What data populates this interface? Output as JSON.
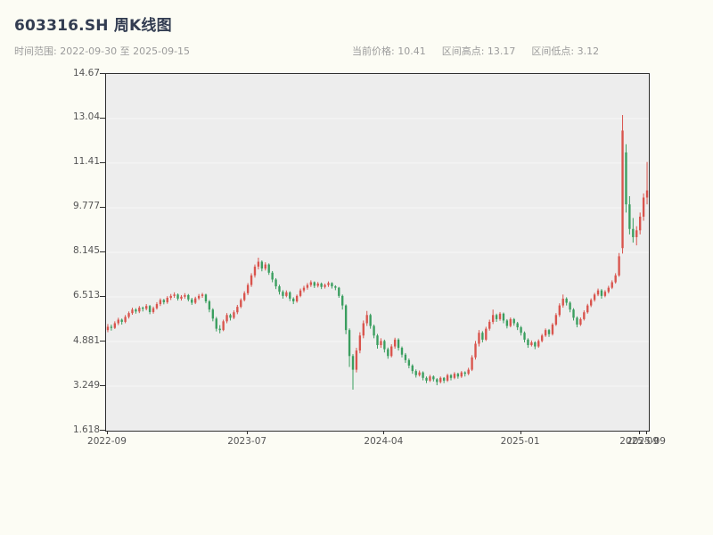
{
  "header": {
    "title": "603316.SH 周K线图",
    "time_range": "时间范围: 2022-09-30 至 2025-09-15",
    "stats": [
      "当前价格: 10.41",
      "区间高点: 13.17",
      "区间低点: 3.12"
    ]
  },
  "colors": {
    "up": "#d9544d",
    "down": "#3a9e5f",
    "plot_bg": "#ededed",
    "page_bg": "#fcfcf4",
    "axis": "#2e2e2e",
    "grid": "#f7f7f7",
    "tick_text": "#555555",
    "title_text": "#333d52",
    "subtitle_text": "#9b9b9b"
  },
  "chart_data": {
    "type": "candlestick",
    "symbol": "603316.SH",
    "title": "603316.SH 周K线图",
    "frequency": "weekly",
    "date_range": [
      "2022-09-30",
      "2025-09-15"
    ],
    "current_price": 10.41,
    "range_high": 13.17,
    "range_low": 3.12,
    "ylim": [
      1.618,
      14.67
    ],
    "y_ticks": [
      {
        "v": 1.618,
        "label": "1.618"
      },
      {
        "v": 3.249,
        "label": "3.249"
      },
      {
        "v": 4.881,
        "label": "4.881"
      },
      {
        "v": 6.513,
        "label": "6.513"
      },
      {
        "v": 8.145,
        "label": "8.145"
      },
      {
        "v": 9.777,
        "label": "9.777"
      },
      {
        "v": 11.41,
        "label": "11.41"
      },
      {
        "v": 13.04,
        "label": "13.04"
      },
      {
        "v": 14.67,
        "label": "14.67"
      }
    ],
    "x_ticks": [
      {
        "i": 0,
        "label": "2022-09"
      },
      {
        "i": 40,
        "label": "2023-07"
      },
      {
        "i": 79,
        "label": "2024-04"
      },
      {
        "i": 118,
        "label": "2025-01"
      },
      {
        "i": 152,
        "label": "2025-09"
      },
      {
        "i": 154,
        "label": "2025-09"
      }
    ],
    "ohlc_format": [
      "open",
      "high",
      "low",
      "close"
    ],
    "candles": [
      [
        5.3,
        5.52,
        5.22,
        5.42
      ],
      [
        5.42,
        5.5,
        5.28,
        5.38
      ],
      [
        5.38,
        5.62,
        5.34,
        5.55
      ],
      [
        5.55,
        5.75,
        5.48,
        5.68
      ],
      [
        5.68,
        5.72,
        5.5,
        5.6
      ],
      [
        5.6,
        5.85,
        5.55,
        5.78
      ],
      [
        5.78,
        5.98,
        5.72,
        5.92
      ],
      [
        5.92,
        6.12,
        5.86,
        6.05
      ],
      [
        6.05,
        6.1,
        5.9,
        5.98
      ],
      [
        5.98,
        6.18,
        5.92,
        6.12
      ],
      [
        6.12,
        6.16,
        5.98,
        6.08
      ],
      [
        6.08,
        6.25,
        6.02,
        6.18
      ],
      [
        6.18,
        6.22,
        5.88,
        5.96
      ],
      [
        5.96,
        6.16,
        5.9,
        6.1
      ],
      [
        6.1,
        6.32,
        6.05,
        6.25
      ],
      [
        6.25,
        6.46,
        6.18,
        6.4
      ],
      [
        6.4,
        6.44,
        6.24,
        6.32
      ],
      [
        6.32,
        6.54,
        6.26,
        6.48
      ],
      [
        6.48,
        6.62,
        6.4,
        6.55
      ],
      [
        6.55,
        6.68,
        6.48,
        6.6
      ],
      [
        6.6,
        6.64,
        6.38,
        6.45
      ],
      [
        6.45,
        6.58,
        6.38,
        6.52
      ],
      [
        6.52,
        6.65,
        6.45,
        6.58
      ],
      [
        6.58,
        6.62,
        6.35,
        6.42
      ],
      [
        6.42,
        6.48,
        6.22,
        6.3
      ],
      [
        6.3,
        6.52,
        6.25,
        6.46
      ],
      [
        6.46,
        6.62,
        6.4,
        6.55
      ],
      [
        6.55,
        6.66,
        6.48,
        6.6
      ],
      [
        6.6,
        6.63,
        6.28,
        6.35
      ],
      [
        6.35,
        6.4,
        5.95,
        6.05
      ],
      [
        6.05,
        6.1,
        5.62,
        5.72
      ],
      [
        5.72,
        5.78,
        5.25,
        5.35
      ],
      [
        5.35,
        5.48,
        5.18,
        5.3
      ],
      [
        5.3,
        5.68,
        5.26,
        5.62
      ],
      [
        5.62,
        5.92,
        5.55,
        5.85
      ],
      [
        5.85,
        5.9,
        5.65,
        5.75
      ],
      [
        5.75,
        6.02,
        5.7,
        5.95
      ],
      [
        5.95,
        6.22,
        5.88,
        6.15
      ],
      [
        6.15,
        6.46,
        6.1,
        6.4
      ],
      [
        6.4,
        6.72,
        6.35,
        6.65
      ],
      [
        6.65,
        7.02,
        6.58,
        6.95
      ],
      [
        6.95,
        7.38,
        6.88,
        7.3
      ],
      [
        7.3,
        7.7,
        7.22,
        7.62
      ],
      [
        7.62,
        7.95,
        7.52,
        7.8
      ],
      [
        7.8,
        7.85,
        7.45,
        7.55
      ],
      [
        7.55,
        7.78,
        7.48,
        7.7
      ],
      [
        7.7,
        7.74,
        7.32,
        7.4
      ],
      [
        7.4,
        7.46,
        7.05,
        7.15
      ],
      [
        7.15,
        7.2,
        6.8,
        6.9
      ],
      [
        6.9,
        6.96,
        6.6,
        6.7
      ],
      [
        6.7,
        6.76,
        6.45,
        6.55
      ],
      [
        6.55,
        6.75,
        6.5,
        6.68
      ],
      [
        6.68,
        6.72,
        6.36,
        6.45
      ],
      [
        6.45,
        6.5,
        6.25,
        6.35
      ],
      [
        6.35,
        6.6,
        6.3,
        6.55
      ],
      [
        6.55,
        6.82,
        6.5,
        6.75
      ],
      [
        6.75,
        6.92,
        6.68,
        6.85
      ],
      [
        6.85,
        7.02,
        6.78,
        6.95
      ],
      [
        6.95,
        7.12,
        6.88,
        7.05
      ],
      [
        7.05,
        7.08,
        6.84,
        6.92
      ],
      [
        6.92,
        7.06,
        6.86,
        7.0
      ],
      [
        7.0,
        7.04,
        6.8,
        6.88
      ],
      [
        6.88,
        7.0,
        6.82,
        6.95
      ],
      [
        6.95,
        7.08,
        6.88,
        7.02
      ],
      [
        7.02,
        7.05,
        6.82,
        6.9
      ],
      [
        6.9,
        6.94,
        6.76,
        6.85
      ],
      [
        6.85,
        6.88,
        6.48,
        6.55
      ],
      [
        6.55,
        6.6,
        6.05,
        6.2
      ],
      [
        6.2,
        6.24,
        5.15,
        5.3
      ],
      [
        5.3,
        5.36,
        3.95,
        4.35
      ],
      [
        4.35,
        4.42,
        3.12,
        3.85
      ],
      [
        3.85,
        4.65,
        3.75,
        4.55
      ],
      [
        4.55,
        5.22,
        4.45,
        5.1
      ],
      [
        5.1,
        5.65,
        5.0,
        5.55
      ],
      [
        5.55,
        6.0,
        5.45,
        5.85
      ],
      [
        5.85,
        5.9,
        5.35,
        5.45
      ],
      [
        5.45,
        5.5,
        5.0,
        5.1
      ],
      [
        5.1,
        5.16,
        4.62,
        4.75
      ],
      [
        4.75,
        5.0,
        4.65,
        4.9
      ],
      [
        4.9,
        4.95,
        4.48,
        4.6
      ],
      [
        4.6,
        4.66,
        4.25,
        4.35
      ],
      [
        4.35,
        4.78,
        4.3,
        4.7
      ],
      [
        4.7,
        5.02,
        4.62,
        4.95
      ],
      [
        4.95,
        5.0,
        4.55,
        4.65
      ],
      [
        4.65,
        4.7,
        4.3,
        4.4
      ],
      [
        4.4,
        4.46,
        4.1,
        4.2
      ],
      [
        4.2,
        4.26,
        3.9,
        4.0
      ],
      [
        4.0,
        4.05,
        3.7,
        3.8
      ],
      [
        3.8,
        3.86,
        3.56,
        3.65
      ],
      [
        3.65,
        3.82,
        3.6,
        3.75
      ],
      [
        3.75,
        3.79,
        3.46,
        3.55
      ],
      [
        3.55,
        3.6,
        3.36,
        3.45
      ],
      [
        3.45,
        3.66,
        3.4,
        3.6
      ],
      [
        3.6,
        3.64,
        3.42,
        3.5
      ],
      [
        3.5,
        3.54,
        3.28,
        3.4
      ],
      [
        3.4,
        3.6,
        3.35,
        3.55
      ],
      [
        3.55,
        3.58,
        3.36,
        3.45
      ],
      [
        3.45,
        3.7,
        3.4,
        3.65
      ],
      [
        3.65,
        3.69,
        3.46,
        3.55
      ],
      [
        3.55,
        3.76,
        3.5,
        3.7
      ],
      [
        3.7,
        3.74,
        3.52,
        3.6
      ],
      [
        3.6,
        3.8,
        3.55,
        3.75
      ],
      [
        3.75,
        3.79,
        3.6,
        3.7
      ],
      [
        3.7,
        3.92,
        3.65,
        3.85
      ],
      [
        3.85,
        4.38,
        3.8,
        4.3
      ],
      [
        4.3,
        4.9,
        4.22,
        4.8
      ],
      [
        4.8,
        5.3,
        4.7,
        5.2
      ],
      [
        5.2,
        5.26,
        4.85,
        4.95
      ],
      [
        4.95,
        5.42,
        4.9,
        5.35
      ],
      [
        5.35,
        5.68,
        5.28,
        5.6
      ],
      [
        5.6,
        6.05,
        5.52,
        5.85
      ],
      [
        5.85,
        5.9,
        5.6,
        5.7
      ],
      [
        5.7,
        5.96,
        5.64,
        5.9
      ],
      [
        5.9,
        5.94,
        5.55,
        5.65
      ],
      [
        5.65,
        5.7,
        5.36,
        5.45
      ],
      [
        5.45,
        5.76,
        5.4,
        5.7
      ],
      [
        5.7,
        5.74,
        5.46,
        5.55
      ],
      [
        5.55,
        5.6,
        5.3,
        5.4
      ],
      [
        5.4,
        5.45,
        5.1,
        5.2
      ],
      [
        5.2,
        5.25,
        4.85,
        4.95
      ],
      [
        4.95,
        5.0,
        4.65,
        4.75
      ],
      [
        4.75,
        4.92,
        4.7,
        4.85
      ],
      [
        4.85,
        4.89,
        4.6,
        4.7
      ],
      [
        4.7,
        4.96,
        4.65,
        4.9
      ],
      [
        4.9,
        5.16,
        4.85,
        5.1
      ],
      [
        5.1,
        5.36,
        5.05,
        5.3
      ],
      [
        5.3,
        5.34,
        5.05,
        5.15
      ],
      [
        5.15,
        5.56,
        5.1,
        5.5
      ],
      [
        5.5,
        5.92,
        5.45,
        5.85
      ],
      [
        5.85,
        6.28,
        5.78,
        6.2
      ],
      [
        6.2,
        6.6,
        6.12,
        6.45
      ],
      [
        6.45,
        6.5,
        6.2,
        6.3
      ],
      [
        6.3,
        6.35,
        5.95,
        6.05
      ],
      [
        6.05,
        6.1,
        5.65,
        5.75
      ],
      [
        5.75,
        5.8,
        5.4,
        5.5
      ],
      [
        5.5,
        5.76,
        5.45,
        5.7
      ],
      [
        5.7,
        6.02,
        5.65,
        5.95
      ],
      [
        5.95,
        6.26,
        5.9,
        6.2
      ],
      [
        6.2,
        6.46,
        6.14,
        6.4
      ],
      [
        6.4,
        6.66,
        6.34,
        6.6
      ],
      [
        6.6,
        6.82,
        6.54,
        6.75
      ],
      [
        6.75,
        6.8,
        6.45,
        6.55
      ],
      [
        6.55,
        6.76,
        6.5,
        6.7
      ],
      [
        6.7,
        6.92,
        6.64,
        6.85
      ],
      [
        6.85,
        7.12,
        6.8,
        7.05
      ],
      [
        7.05,
        7.38,
        7.0,
        7.3
      ],
      [
        7.3,
        8.12,
        7.25,
        8.0
      ],
      [
        8.3,
        13.17,
        8.1,
        12.6
      ],
      [
        11.8,
        12.1,
        9.6,
        9.9
      ],
      [
        9.9,
        10.2,
        8.8,
        9.0
      ],
      [
        9.0,
        9.4,
        8.5,
        8.7
      ],
      [
        8.7,
        9.1,
        8.4,
        8.95
      ],
      [
        8.95,
        9.6,
        8.8,
        9.45
      ],
      [
        9.45,
        10.3,
        9.3,
        10.15
      ],
      [
        10.15,
        11.45,
        9.9,
        10.41
      ]
    ]
  }
}
